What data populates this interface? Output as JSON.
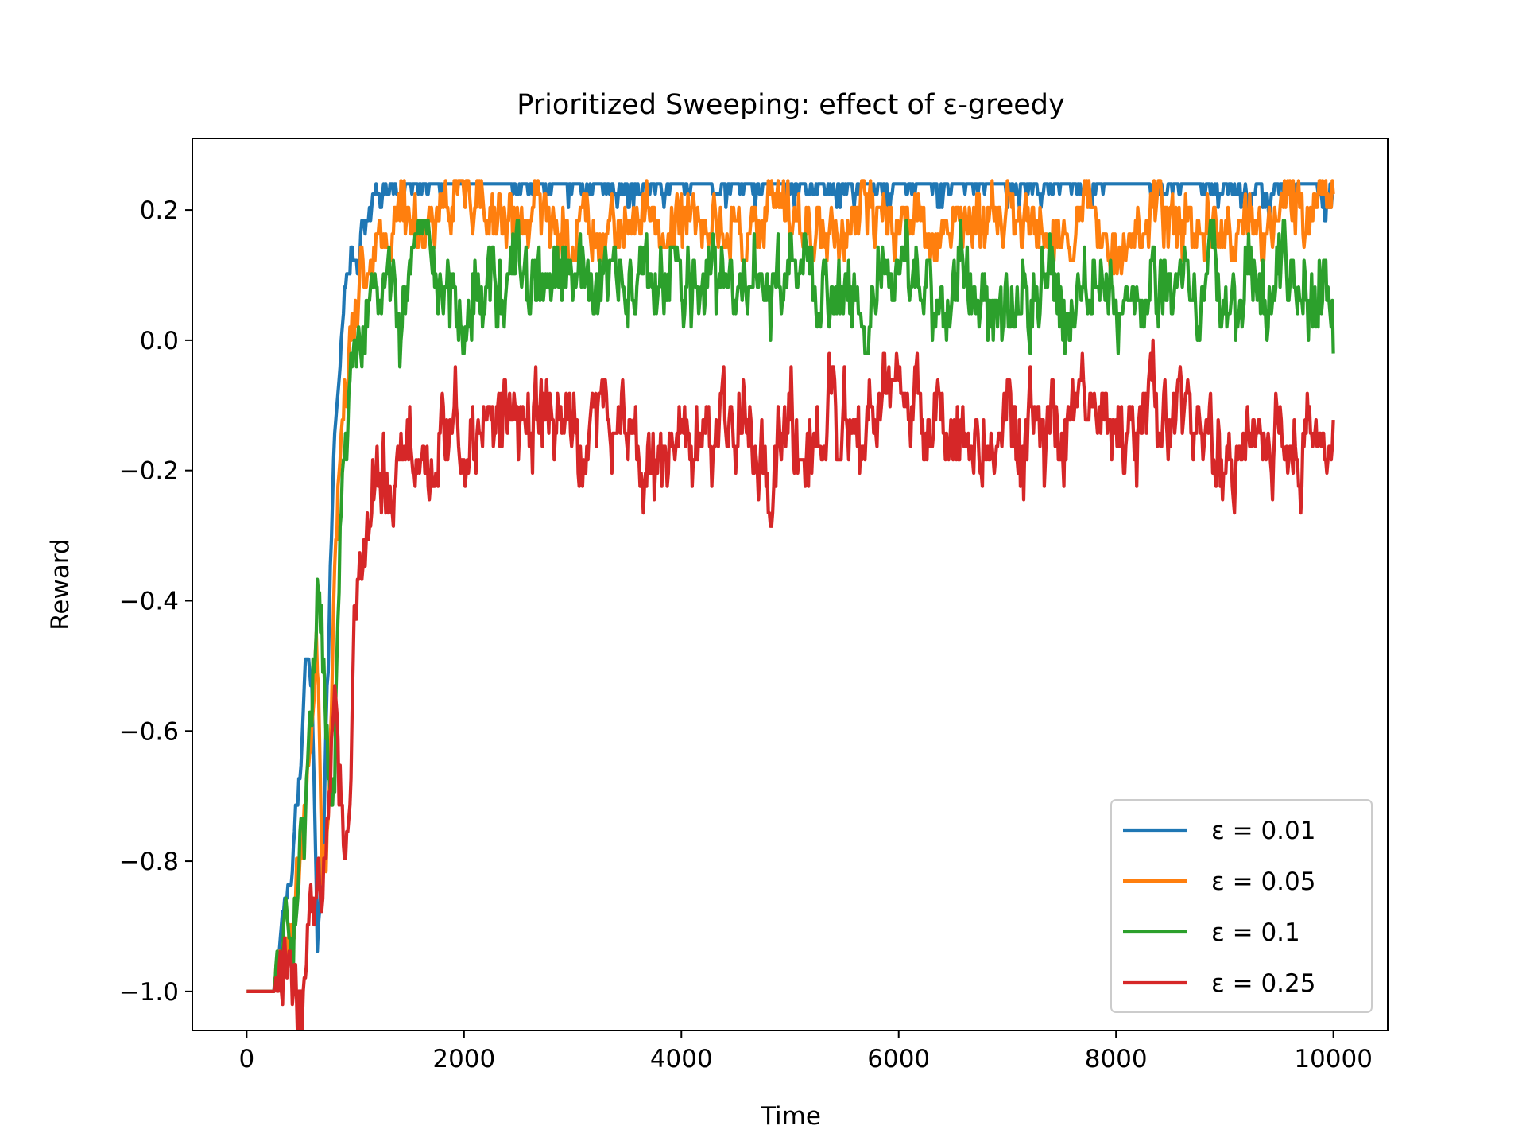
{
  "chart_data": {
    "type": "line",
    "title": "Prioritized Sweeping: effect of ε-greedy",
    "xlabel": "Time",
    "ylabel": "Reward",
    "xlim": [
      -500,
      10500
    ],
    "ylim": [
      -1.06,
      0.31
    ],
    "xticks": [
      0,
      2000,
      4000,
      6000,
      8000,
      10000
    ],
    "xtick_labels": [
      "0",
      "2000",
      "4000",
      "6000",
      "8000",
      "10000"
    ],
    "yticks": [
      -1.0,
      -0.8,
      -0.6,
      -0.4,
      -0.2,
      0.0,
      0.2
    ],
    "ytick_labels": [
      "−1.0",
      "−0.8",
      "−0.6",
      "−0.4",
      "−0.2",
      "0.0",
      "0.2"
    ],
    "grid": false,
    "legend_position": "lower-right",
    "series": [
      {
        "name": "ε = 0.01",
        "color": "#1f77b4",
        "x": [
          0,
          250,
          300,
          400,
          500,
          550,
          600,
          650,
          700,
          750,
          800,
          850,
          900,
          1000,
          1100,
          1200,
          1300,
          1400,
          1500,
          2000,
          2500,
          3000,
          3500,
          4000,
          4500,
          5000,
          5500,
          6000,
          6500,
          7000,
          7500,
          8000,
          8500,
          9000,
          9500,
          9990
        ],
        "values": [
          -1.0,
          -1.0,
          -0.9,
          -0.8,
          -0.65,
          -0.48,
          -0.55,
          -0.9,
          -0.8,
          -0.5,
          -0.2,
          -0.05,
          0.08,
          0.12,
          0.16,
          0.2,
          0.22,
          0.24,
          0.24,
          0.24,
          0.24,
          0.24,
          0.24,
          0.24,
          0.24,
          0.24,
          0.24,
          0.24,
          0.24,
          0.24,
          0.24,
          0.24,
          0.24,
          0.24,
          0.24,
          0.24
        ],
        "noise": 0.022,
        "cap": 0.24
      },
      {
        "name": "ε = 0.05",
        "color": "#ff7f0e",
        "x": [
          0,
          250,
          300,
          400,
          500,
          600,
          650,
          700,
          750,
          800,
          850,
          900,
          1000,
          1100,
          1200,
          1300,
          1400,
          1500,
          2000,
          2500,
          3000,
          3500,
          4000,
          4500,
          5000,
          5500,
          6000,
          6500,
          7000,
          7500,
          8000,
          8500,
          9000,
          9500,
          10000
        ],
        "values": [
          -1.0,
          -1.0,
          -0.95,
          -0.9,
          -0.8,
          -0.6,
          -0.5,
          -0.85,
          -0.7,
          -0.4,
          -0.15,
          -0.05,
          0.07,
          0.12,
          0.16,
          0.18,
          0.19,
          0.19,
          0.19,
          0.18,
          0.18,
          0.18,
          0.18,
          0.18,
          0.18,
          0.18,
          0.18,
          0.18,
          0.18,
          0.18,
          0.18,
          0.18,
          0.18,
          0.18,
          0.25
        ],
        "noise": 0.035,
        "cap": 0.25
      },
      {
        "name": "ε = 0.1",
        "color": "#2ca02c",
        "x": [
          0,
          250,
          300,
          400,
          500,
          600,
          650,
          700,
          750,
          800,
          850,
          900,
          1000,
          1100,
          1200,
          1300,
          1500,
          2000,
          2500,
          3000,
          3500,
          4000,
          4500,
          5000,
          5500,
          6000,
          6500,
          7000,
          7500,
          8000,
          8500,
          9000,
          9500,
          9900,
          10000
        ],
        "values": [
          -1.0,
          -1.0,
          -0.95,
          -0.9,
          -0.75,
          -0.55,
          -0.4,
          -0.5,
          -0.7,
          -0.75,
          -0.4,
          -0.15,
          -0.05,
          0.02,
          0.05,
          0.06,
          0.07,
          0.08,
          0.08,
          0.08,
          0.07,
          0.08,
          0.08,
          0.08,
          0.08,
          0.08,
          0.08,
          0.08,
          0.08,
          0.08,
          0.08,
          0.08,
          0.08,
          0.1,
          0.03
        ],
        "noise": 0.045,
        "cap": 0.19
      },
      {
        "name": "ε = 0.25",
        "color": "#d62728",
        "x": [
          0,
          250,
          350,
          450,
          500,
          550,
          600,
          700,
          800,
          850,
          900,
          950,
          1000,
          1100,
          1200,
          1300,
          1500,
          1800,
          2000,
          2500,
          3000,
          3500,
          3800,
          4000,
          4500,
          5000,
          5500,
          6000,
          6500,
          7000,
          7500,
          8000,
          8500,
          9000,
          9500,
          10000
        ],
        "values": [
          -1.0,
          -1.0,
          -0.98,
          -0.98,
          -1.0,
          -0.9,
          -0.86,
          -0.84,
          -0.5,
          -0.6,
          -0.72,
          -0.65,
          -0.4,
          -0.35,
          -0.25,
          -0.22,
          -0.18,
          -0.17,
          -0.15,
          -0.12,
          -0.14,
          -0.13,
          -0.2,
          -0.15,
          -0.15,
          -0.15,
          -0.16,
          -0.12,
          -0.13,
          -0.15,
          -0.16,
          -0.15,
          -0.12,
          -0.16,
          -0.17,
          -0.15
        ],
        "noise": 0.05,
        "cap": 0.0
      }
    ]
  }
}
